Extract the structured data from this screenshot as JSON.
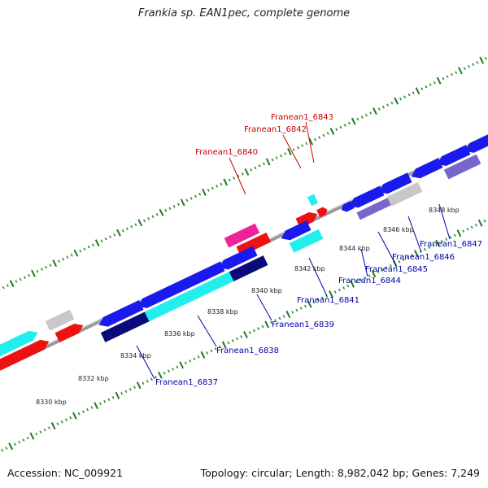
{
  "title": "Frankia sp. EAN1pec, complete genome",
  "footer": {
    "accession": "Accession: NC_009921",
    "summary": "Topology: circular; Length: 8,982,042 bp; Genes: 7,249"
  },
  "colors": {
    "backbone": "#888888",
    "tick_major": "#1f7a1f",
    "tick_minor": "#2e8b2e",
    "label_top": "#cc0000",
    "label_bottom": "#0000aa"
  },
  "ticks": [
    {
      "label": "8330 kbp"
    },
    {
      "label": "8332 kbp"
    },
    {
      "label": "8334 kbp"
    },
    {
      "label": "8336 kbp"
    },
    {
      "label": "8338 kbp"
    },
    {
      "label": "8340 kbp"
    },
    {
      "label": "8342 kbp"
    },
    {
      "label": "8344 kbp"
    },
    {
      "label": "8346 kbp"
    },
    {
      "label": "8348 kbp"
    }
  ],
  "gene_labels": [
    {
      "text": "Franean1_6843",
      "color": "#cc0000"
    },
    {
      "text": "Franean1_6842",
      "color": "#cc0000"
    },
    {
      "text": "Franean1_6840",
      "color": "#cc0000"
    },
    {
      "text": "Franean1_6847",
      "color": "#0000aa"
    },
    {
      "text": "Franean1_6846",
      "color": "#0000aa"
    },
    {
      "text": "Franean1_6845",
      "color": "#0000aa"
    },
    {
      "text": "Franean1_6844",
      "color": "#0000aa"
    },
    {
      "text": "Franean1_6841",
      "color": "#0000aa"
    },
    {
      "text": "Franean1_6839",
      "color": "#0000aa"
    },
    {
      "text": "Franean1_6838",
      "color": "#0000aa"
    },
    {
      "text": "Franean1_6837",
      "color": "#0000aa"
    }
  ],
  "feature_colors": {
    "red": "#ee1111",
    "pink": "#ee2299",
    "cyan": "#22eeee",
    "blue": "#1a1aee",
    "navy": "#0a0a7a",
    "gray": "#c8c8c8",
    "lavender": "#7766cc"
  }
}
